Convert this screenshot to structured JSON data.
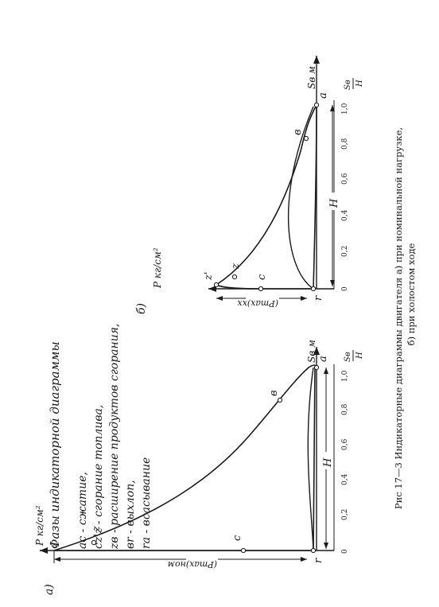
{
  "caption": {
    "line1": "Рис 17—3 Индикаторные диаграммы двигателя а) при номинальной нагрузке,",
    "line2": "б) при холостом ходе"
  },
  "legend": {
    "title": "Фазы индикаторной диаграммы",
    "items": [
      "ac - сжатие,",
      "cz'z - сгорание топлива,",
      "zв - расширение продуктов сгорания,",
      "вr - выхлоп,",
      "ra - всасывание"
    ]
  },
  "diagram_a": {
    "tag": "а)",
    "y_axis": "P кг/см²",
    "y_sub": "z",
    "x_axis": "Sв м",
    "x_ratio_num": "Sв",
    "x_ratio_den": "H",
    "ticks": [
      "0",
      "0,2",
      "0,4",
      "0,6",
      "0,8",
      "1,0"
    ],
    "points": [
      "z",
      "c",
      "в",
      "a",
      "r"
    ],
    "stroke_label": "H",
    "pmax_label": "(Pmax)ном"
  },
  "diagram_b": {
    "tag": "б)",
    "y_axis": "P кг/см²",
    "x_axis": "Sв м",
    "x_ratio_num": "Sв",
    "x_ratio_den": "H",
    "ticks": [
      "0",
      "0,2",
      "0,4",
      "0,6",
      "0,8",
      "1,0"
    ],
    "points": [
      "z'",
      "z",
      "c",
      "в",
      "a",
      "r"
    ],
    "stroke_label": "H",
    "pmax_label": "(Pmax)xx"
  }
}
